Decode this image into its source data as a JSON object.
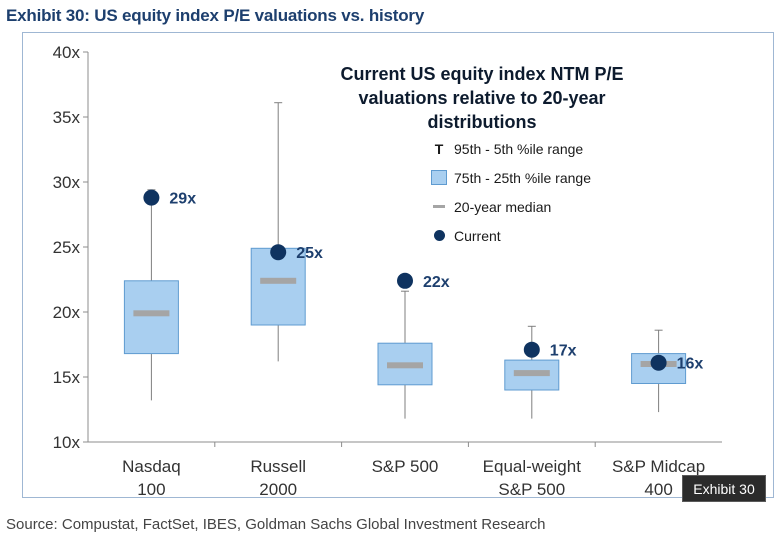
{
  "exhibit_title": "Exhibit 30: US equity index P/E valuations vs. history",
  "source": "Source: Compustat, FactSet, IBES, Goldman Sachs Global Investment Research",
  "badge": "Exhibit 30",
  "legend": {
    "title": "Current US equity index NTM P/E valuations relative to 20-year distributions",
    "range_symbol": "T",
    "items": [
      "95th - 5th %ile range",
      "75th - 25th %ile range",
      "20-year median",
      "Current"
    ]
  },
  "colors": {
    "box_fill": "#a9cff0",
    "box_stroke": "#5f9bd0",
    "median": "#a5a5a5",
    "current": "#0f3360",
    "label": "#1d3f6e",
    "whisker": "#7f7f7f"
  },
  "chart_data": {
    "type": "box",
    "title": "Current US equity index NTM P/E valuations relative to 20-year distributions",
    "ylim": [
      10,
      40
    ],
    "yticks": [
      10,
      15,
      20,
      25,
      30,
      35,
      40
    ],
    "ytick_labels": [
      "10x",
      "15x",
      "20x",
      "25x",
      "30x",
      "35x",
      "40x"
    ],
    "categories": [
      {
        "line1": "Nasdaq",
        "line2": "100"
      },
      {
        "line1": "Russell",
        "line2": "2000"
      },
      {
        "line1": "S&P 500",
        "line2": ""
      },
      {
        "line1": "Equal-weight",
        "line2": "S&P 500"
      },
      {
        "line1": "S&P Midcap",
        "line2": "400"
      }
    ],
    "p5": [
      13.2,
      16.2,
      11.8,
      11.8,
      12.3
    ],
    "p25": [
      16.8,
      19.0,
      14.4,
      14.0,
      14.5
    ],
    "median": [
      19.9,
      22.4,
      15.9,
      15.3,
      16.0
    ],
    "p75": [
      22.4,
      24.9,
      17.6,
      16.3,
      16.8
    ],
    "p95": [
      29.4,
      36.1,
      21.6,
      18.9,
      18.6
    ],
    "current": [
      28.8,
      24.6,
      22.4,
      17.1,
      16.1
    ],
    "current_labels": [
      "29x",
      "25x",
      "22x",
      "17x",
      "16x"
    ]
  }
}
